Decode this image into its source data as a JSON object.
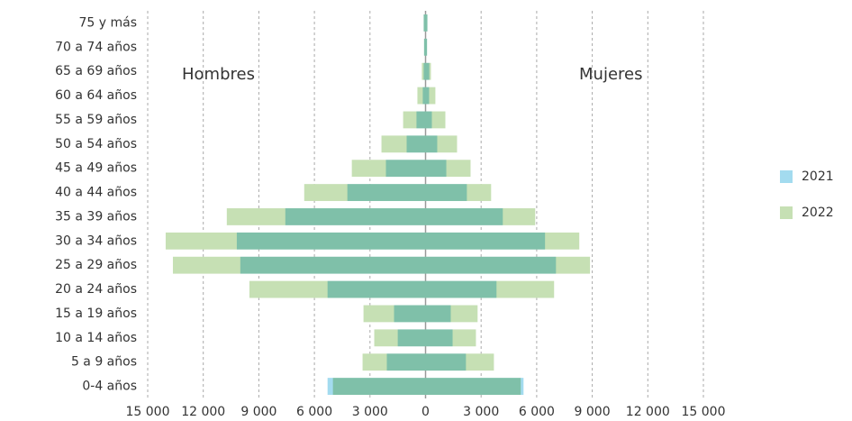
{
  "chart_data": {
    "type": "pyramid",
    "side_labels": [
      "Hombres",
      "Mujeres"
    ],
    "categories": [
      "75 y más",
      "70 a 74 años",
      "65 a 69 años",
      "60 a 64 años",
      "55 a 59 años",
      "50 a 54 años",
      "45 a 49 años",
      "40 a 44 años",
      "35 a 39 años",
      "30 a 34 años",
      "25 a 29 años",
      "20 a 24 años",
      "15 a 19 años",
      "10 a 14 años",
      "5 a 9 años",
      "0-4 años"
    ],
    "series": [
      {
        "name": "2022",
        "color": "#c6e0b4",
        "values_left": [
          100,
          80,
          200,
          440,
          1210,
          2380,
          3980,
          6550,
          10730,
          14030,
          13640,
          9510,
          3350,
          2770,
          3400,
          5000
        ],
        "values_right": [
          100,
          80,
          290,
          530,
          1070,
          1700,
          2430,
          3540,
          5920,
          8300,
          8880,
          6940,
          2810,
          2720,
          3690,
          5140
        ]
      },
      {
        "name": "2021",
        "color": "#a3dbef",
        "values_left": [
          100,
          80,
          100,
          150,
          490,
          1020,
          2140,
          4220,
          7570,
          10190,
          10000,
          5290,
          1700,
          1500,
          2090,
          5290
        ],
        "values_right": [
          100,
          80,
          200,
          190,
          340,
          630,
          1120,
          2230,
          4170,
          6450,
          7040,
          3830,
          1360,
          1460,
          2180,
          5290
        ]
      }
    ],
    "xlim": [
      -15000,
      15000
    ],
    "xticks": [
      {
        "value": -15000,
        "label": "15 000"
      },
      {
        "value": -12000,
        "label": "12 000"
      },
      {
        "value": -9000,
        "label": "9 000"
      },
      {
        "value": -6000,
        "label": "6 000"
      },
      {
        "value": -3000,
        "label": "3 000"
      },
      0,
      {
        "value": 3000,
        "label": "3 000"
      },
      {
        "value": 6000,
        "label": "6 000"
      },
      {
        "value": 9000,
        "label": "9 000"
      },
      {
        "value": 12000,
        "label": "12 000"
      },
      {
        "value": 15000,
        "label": "15 000"
      }
    ],
    "grid": true
  }
}
